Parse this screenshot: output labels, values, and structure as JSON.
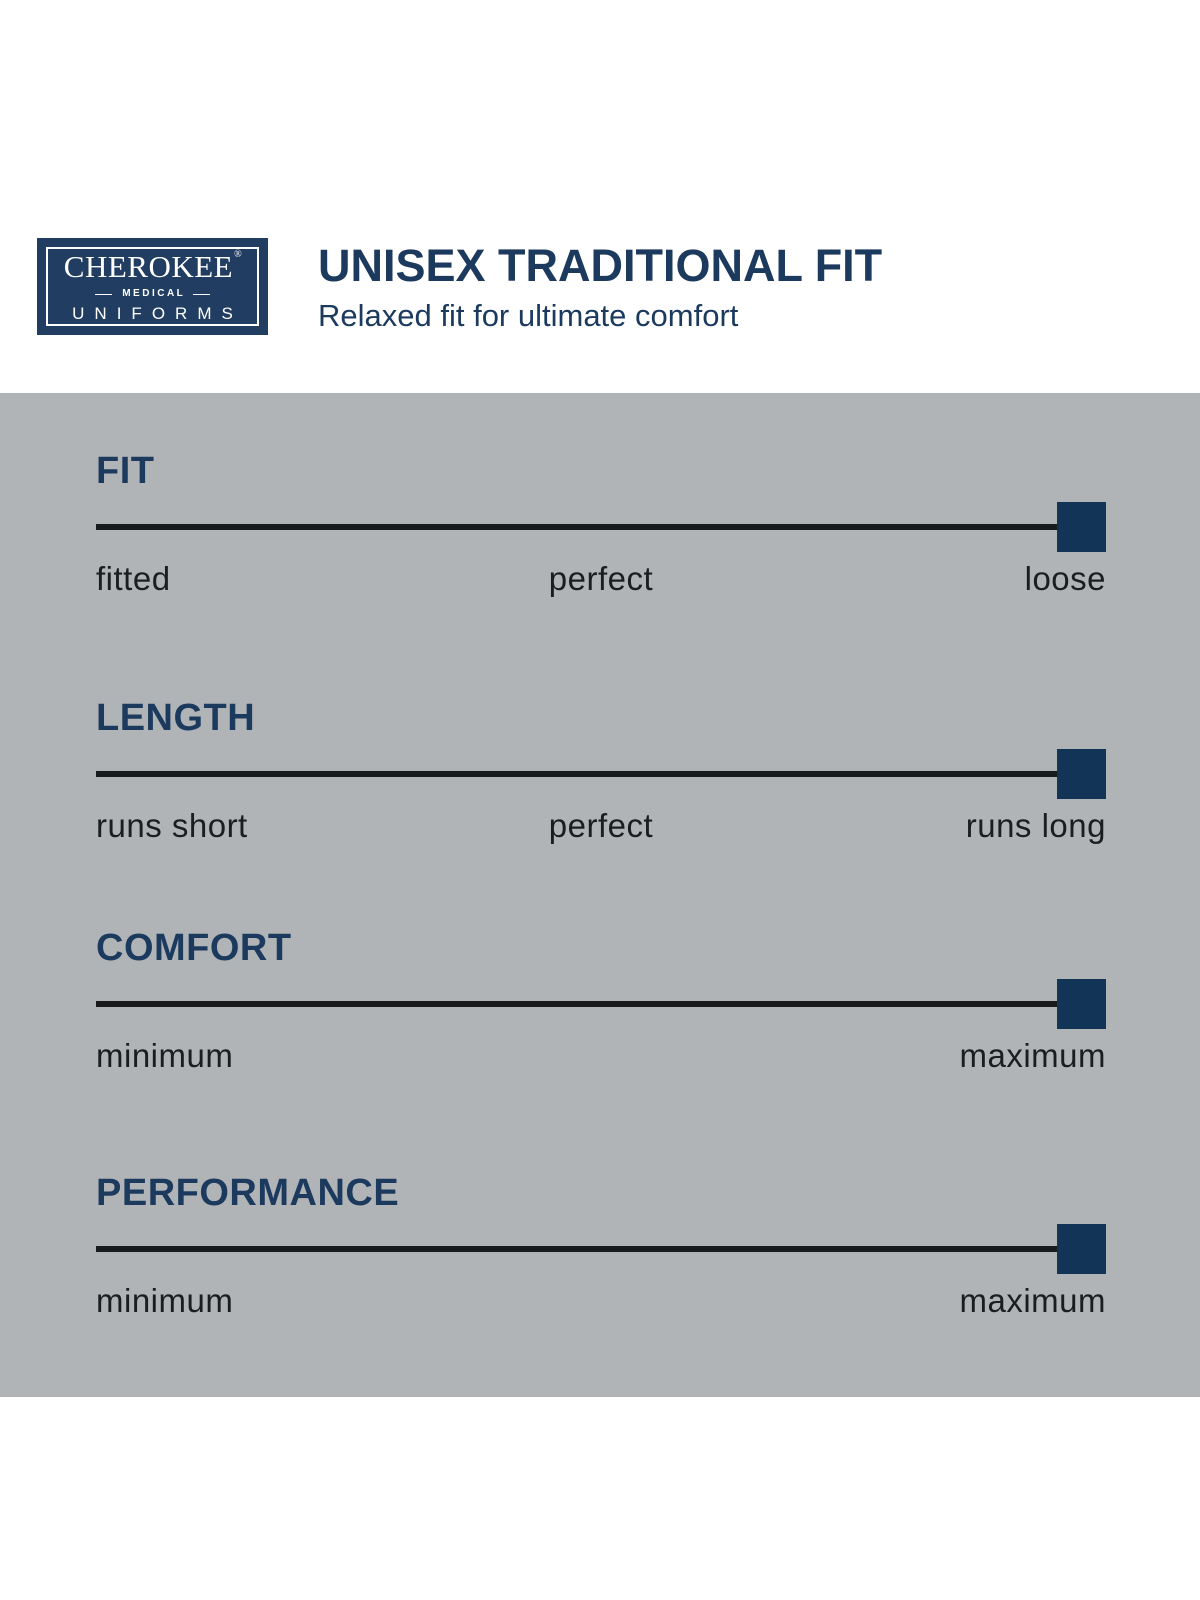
{
  "colors": {
    "navy_text": "#1c3a5e",
    "logo_navy": "#213e62",
    "marker_navy": "#123457",
    "panel_gray": "#b1b4b7",
    "line_black": "#191a1c",
    "label_black": "#1c1d1f"
  },
  "header": {
    "logo": {
      "brand": "CHEROKEE",
      "registered_mark": "®",
      "division": "MEDICAL",
      "product_line": "UNIFORMS"
    },
    "title": "UNISEX TRADITIONAL FIT",
    "subtitle": "Relaxed fit for ultimate comfort"
  },
  "panel": {
    "sliders": [
      {
        "name": "FIT",
        "labels": {
          "left": "fitted",
          "center": "perfect",
          "right": "loose"
        },
        "value_percent": 100,
        "value_label": "loose"
      },
      {
        "name": "LENGTH",
        "labels": {
          "left": "runs short",
          "center": "perfect",
          "right": "runs long"
        },
        "value_percent": 100,
        "value_label": "runs long"
      },
      {
        "name": "COMFORT",
        "labels": {
          "left": "minimum",
          "right": "maximum"
        },
        "value_percent": 100,
        "value_label": "maximum"
      },
      {
        "name": "PERFORMANCE",
        "labels": {
          "left": "minimum",
          "right": "maximum"
        },
        "value_percent": 100,
        "value_label": "maximum"
      }
    ]
  }
}
